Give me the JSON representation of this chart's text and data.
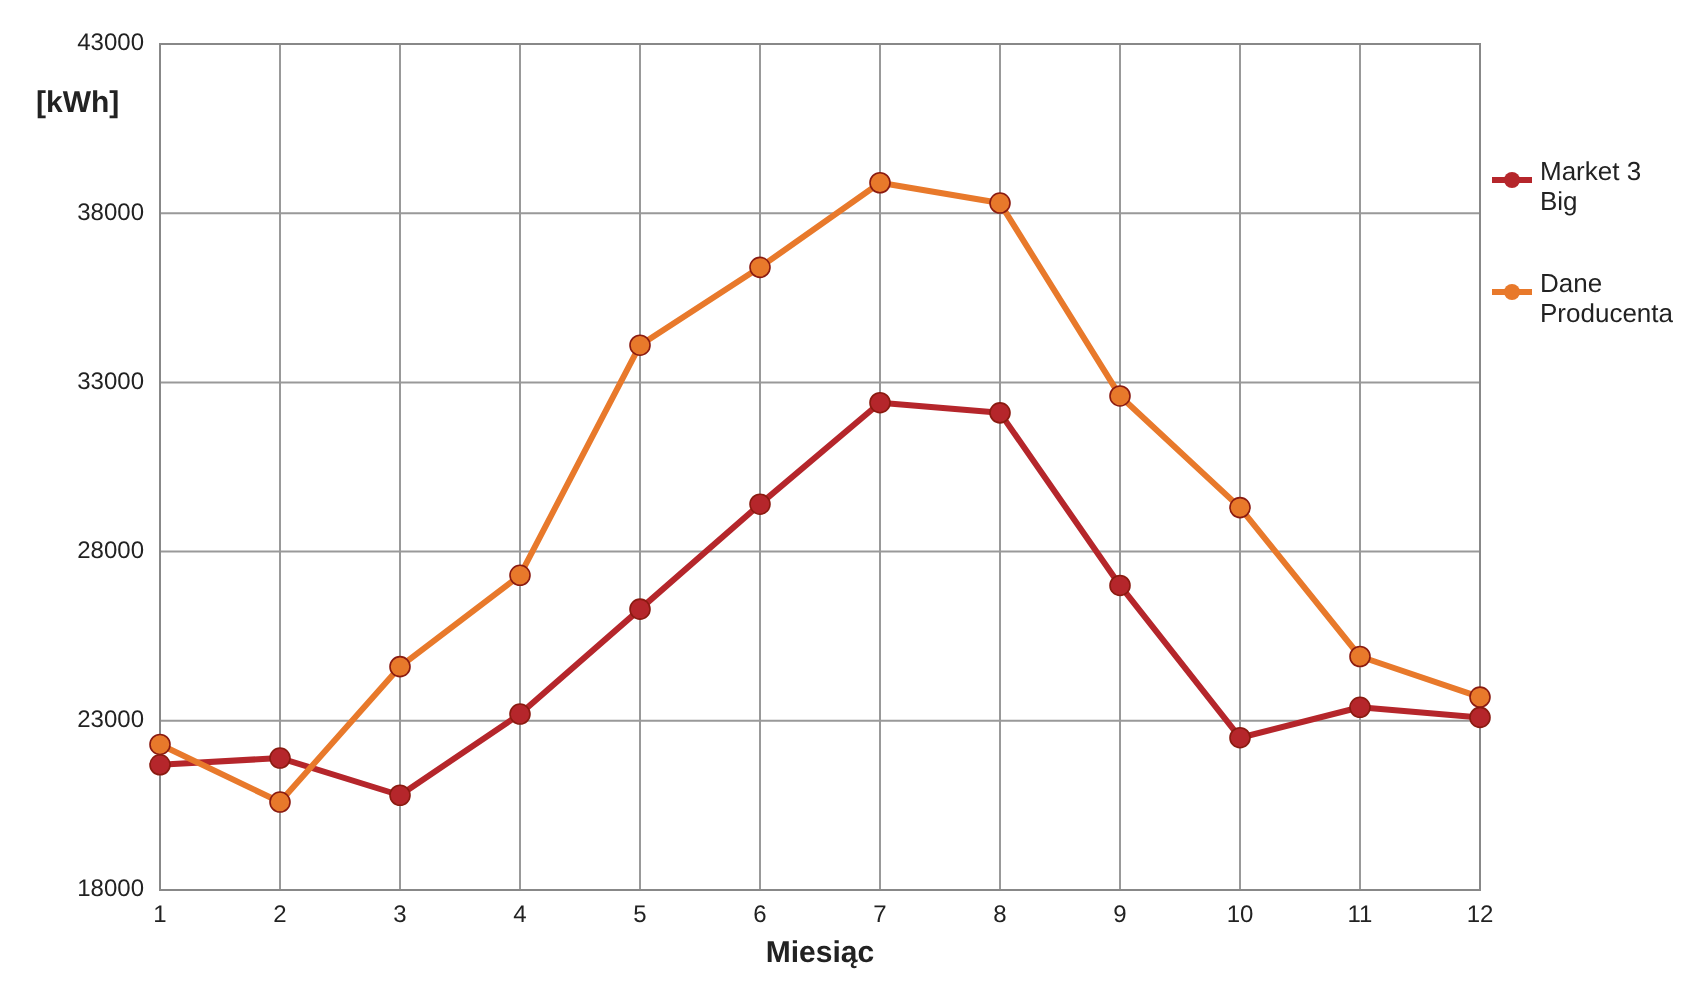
{
  "chart_data": {
    "type": "line",
    "xlabel": "Miesiąc",
    "ylabel": "[kWh]",
    "x": [
      1,
      2,
      3,
      4,
      5,
      6,
      7,
      8,
      9,
      10,
      11,
      12
    ],
    "xlim": [
      1,
      12
    ],
    "xticks": [
      1,
      2,
      3,
      4,
      5,
      6,
      7,
      8,
      9,
      10,
      11,
      12
    ],
    "ylim": [
      18000,
      43000
    ],
    "yticks": [
      18000,
      23000,
      28000,
      33000,
      38000,
      43000
    ],
    "grid": true,
    "legend": "top right",
    "marker": "circle",
    "line_style": "solid",
    "series": [
      {
        "name": "Market 3 Big",
        "color": "#b5262b",
        "values": [
          21700,
          21900,
          20800,
          23200,
          26300,
          29400,
          32400,
          32100,
          27000,
          22500,
          23400,
          23100
        ]
      },
      {
        "name": "Dane Producenta",
        "color": "#e8792b",
        "values": [
          22300,
          20600,
          24600,
          27300,
          34100,
          36400,
          38900,
          38300,
          32600,
          29300,
          24900,
          23700
        ]
      }
    ]
  }
}
